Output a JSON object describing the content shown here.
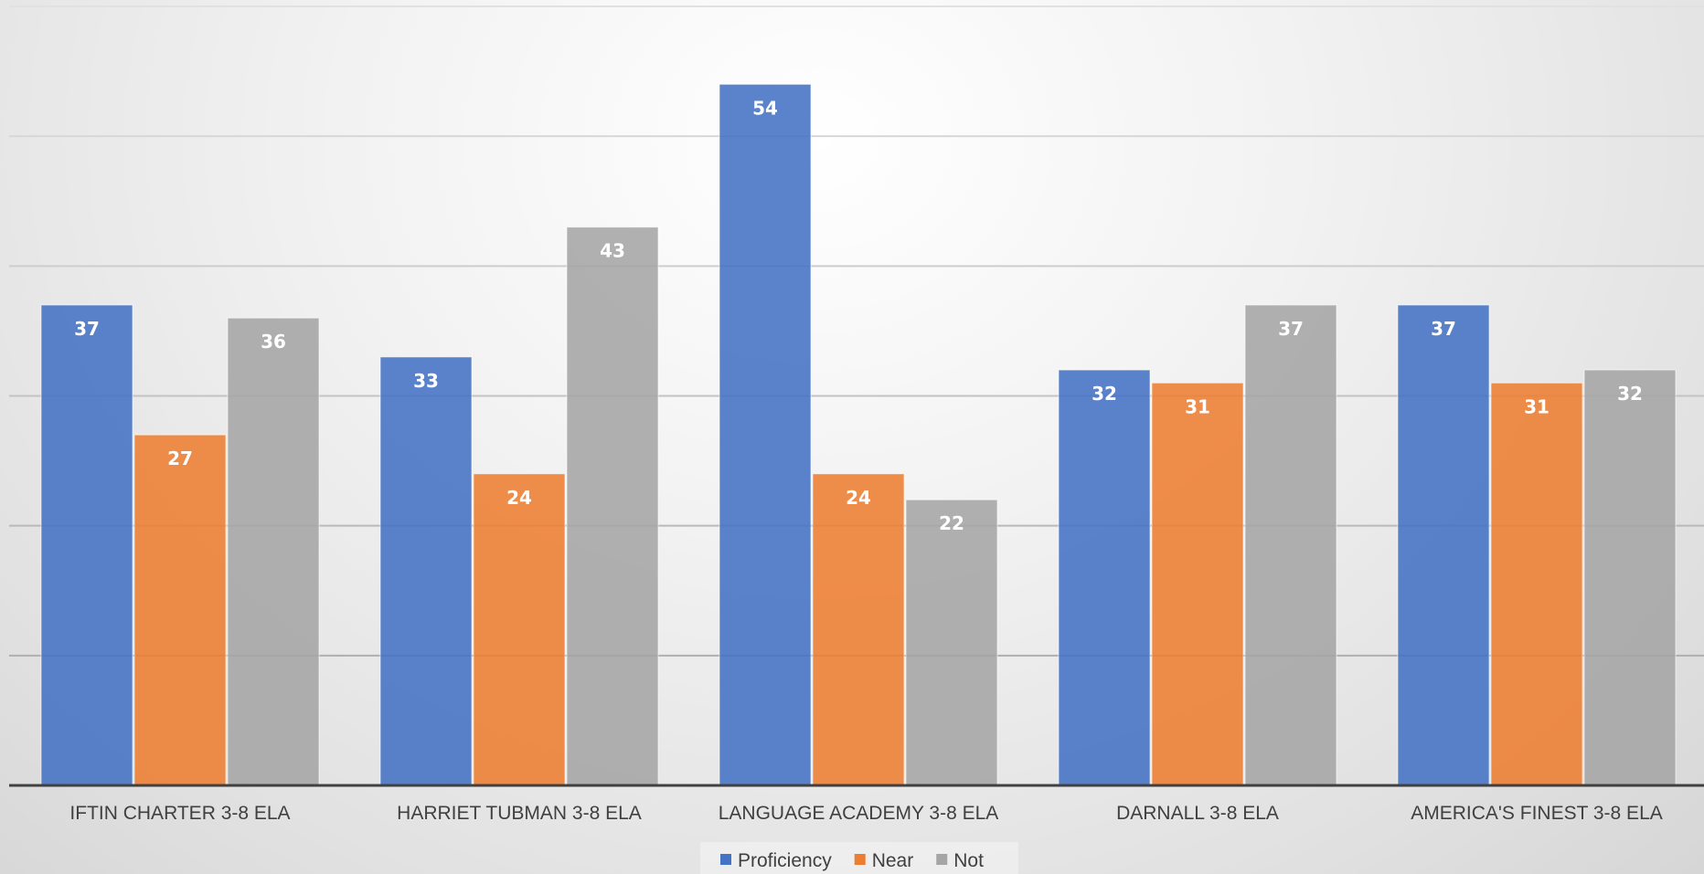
{
  "chart_data": {
    "type": "bar",
    "title": "",
    "xlabel": "",
    "ylabel": "",
    "ylim": [
      0,
      60
    ],
    "grid": true,
    "legend_position": "bottom",
    "categories": [
      "IFTIN CHARTER 3-8 ELA",
      "HARRIET TUBMAN 3-8 ELA",
      "LANGUAGE ACADEMY 3-8 ELA",
      "DARNALL 3-8 ELA",
      "AMERICA'S FINEST 3-8 ELA"
    ],
    "series": [
      {
        "name": "Proficiency",
        "color": "#4472C4",
        "values": [
          37,
          33,
          54,
          32,
          37
        ]
      },
      {
        "name": "Near",
        "color": "#ED7D31",
        "values": [
          27,
          24,
          24,
          31,
          31
        ]
      },
      {
        "name": "Not",
        "color": "#A5A5A5",
        "values": [
          36,
          43,
          22,
          37,
          32
        ]
      }
    ]
  }
}
